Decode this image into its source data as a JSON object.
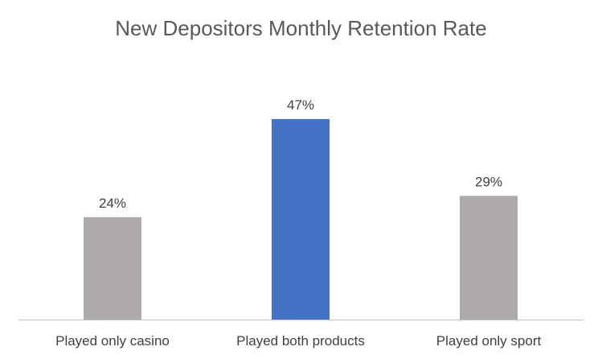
{
  "chart_data": {
    "type": "bar",
    "title": "New Depositors Monthly Retention Rate",
    "xlabel": "",
    "ylabel": "",
    "categories": [
      "Played only casino",
      "Played both products",
      "Played only sport"
    ],
    "values": [
      24,
      47,
      29
    ],
    "value_labels": [
      "24%",
      "47%",
      "29%"
    ],
    "value_unit": "%",
    "ylim": [
      0,
      60
    ],
    "grid": false,
    "legend": "none",
    "bar_colors": [
      "#AEAAAA",
      "#4472C4",
      "#AEAAAA"
    ],
    "axis_color": "#BFBFBF"
  }
}
